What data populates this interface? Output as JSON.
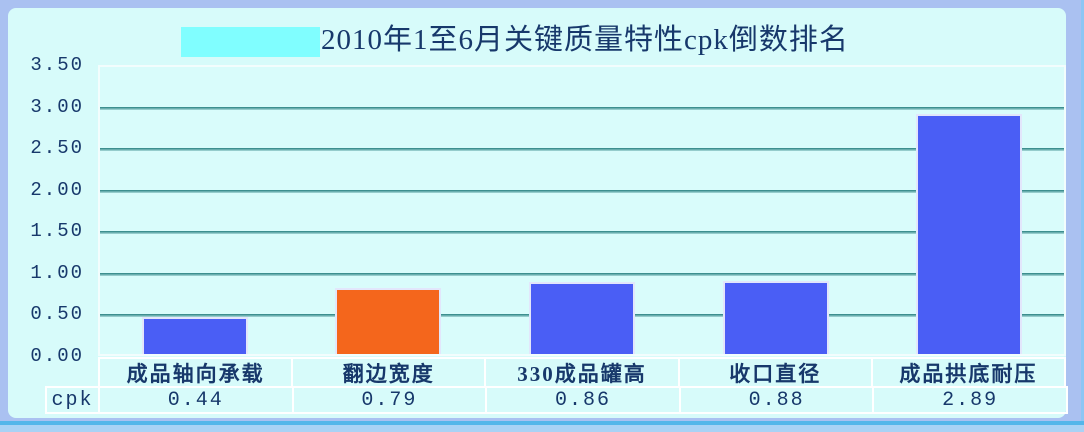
{
  "frame": {
    "background": "#aac1f1",
    "panel_background": "#d7fbfa",
    "bottom_accent_color": "#54b6ea",
    "title_highlight_color": "#80feff"
  },
  "chart_data": {
    "type": "bar",
    "title": "2010年1至6月关键质量特性cpk倒数排名",
    "title_color": "#17386b",
    "categories": [
      "成品轴向承载",
      "翻边宽度",
      "330成品罐高",
      "收口直径",
      "成品拱底耐压"
    ],
    "series": [
      {
        "name": "cpk",
        "values": [
          0.44,
          0.79,
          0.86,
          0.88,
          2.89
        ]
      }
    ],
    "bar_colors": [
      "#4a5ef5",
      "#f4661c",
      "#4a5ef5",
      "#4a5ef5",
      "#4a5ef5"
    ],
    "xlabel": "",
    "ylabel": "",
    "ylim": [
      0,
      3.5
    ],
    "ytick_labels": [
      "3.50",
      "3.00",
      "2.50",
      "2.00",
      "1.50",
      "1.00",
      "0.50",
      "0.00"
    ],
    "grid": true,
    "gridline_color": "#3d8f8f",
    "legend_position": "none",
    "data_table": {
      "row_label": "cpk",
      "values": [
        "0.44",
        "0.79",
        "0.86",
        "0.88",
        "2.89"
      ]
    }
  }
}
